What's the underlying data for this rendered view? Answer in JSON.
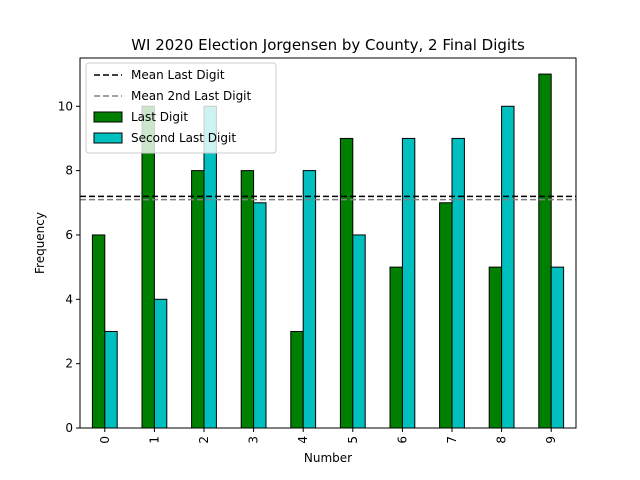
{
  "chart_data": {
    "type": "bar",
    "title": "WI 2020 Election Jorgensen by County, 2 Final Digits",
    "xlabel": "Number",
    "ylabel": "Frequency",
    "categories": [
      "0",
      "1",
      "2",
      "3",
      "4",
      "5",
      "6",
      "7",
      "8",
      "9"
    ],
    "ylim": [
      0,
      11.5
    ],
    "yticks": [
      0,
      2,
      4,
      6,
      8,
      10
    ],
    "series": [
      {
        "name": "Last Digit",
        "color": "#008000",
        "values": [
          6,
          10,
          8,
          8,
          3,
          9,
          5,
          7,
          5,
          11
        ]
      },
      {
        "name": "Second Last Digit",
        "color": "#00BFBF",
        "values": [
          3,
          4,
          10,
          7,
          8,
          6,
          9,
          9,
          10,
          5
        ]
      }
    ],
    "reference_lines": [
      {
        "name": "Mean Last Digit",
        "value": 7.2,
        "color": "#000000",
        "style": "dashed"
      },
      {
        "name": "Mean 2nd Last Digit",
        "value": 7.1,
        "color": "#808080",
        "style": "dashed"
      }
    ],
    "legend_position": "top-left",
    "grid": false
  }
}
